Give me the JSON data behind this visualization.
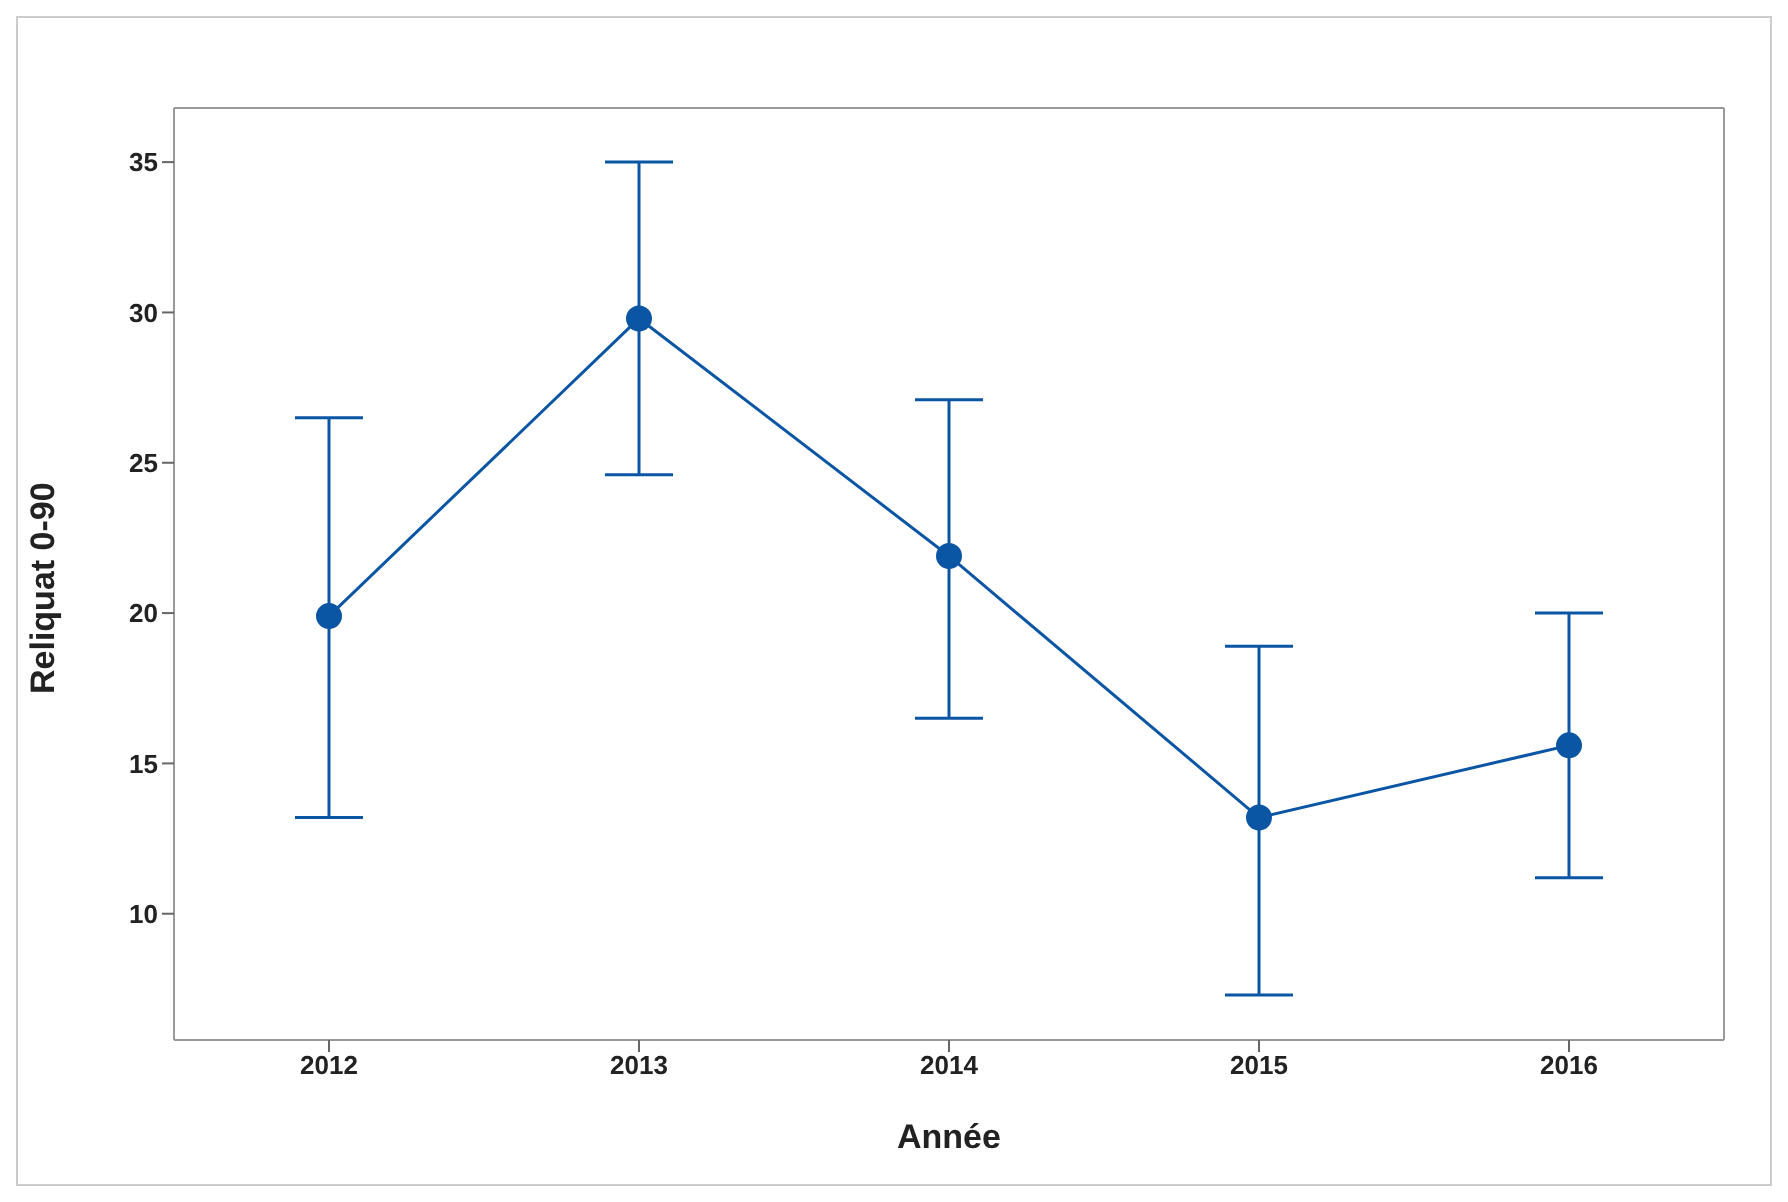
{
  "chart_data": {
    "type": "line",
    "xlabel": "Année",
    "ylabel": "Reliquat 0-90",
    "categories": [
      "2012",
      "2013",
      "2014",
      "2015",
      "2016"
    ],
    "series": [
      {
        "color": "#0b56a4",
        "values": [
          19.9,
          29.8,
          21.9,
          13.2,
          15.6
        ],
        "errors": [
          [
            13.2,
            26.5
          ],
          [
            24.6,
            35
          ],
          [
            16.5,
            27.1
          ],
          [
            7.3,
            18.9
          ],
          [
            11.2,
            20
          ]
        ]
      }
    ],
    "ylim": [
      5.8,
      36.8
    ],
    "yticks": [
      10,
      15,
      20,
      25,
      30,
      35
    ],
    "grid": false,
    "legend": false,
    "marker": "circle",
    "line_style": "solid"
  }
}
